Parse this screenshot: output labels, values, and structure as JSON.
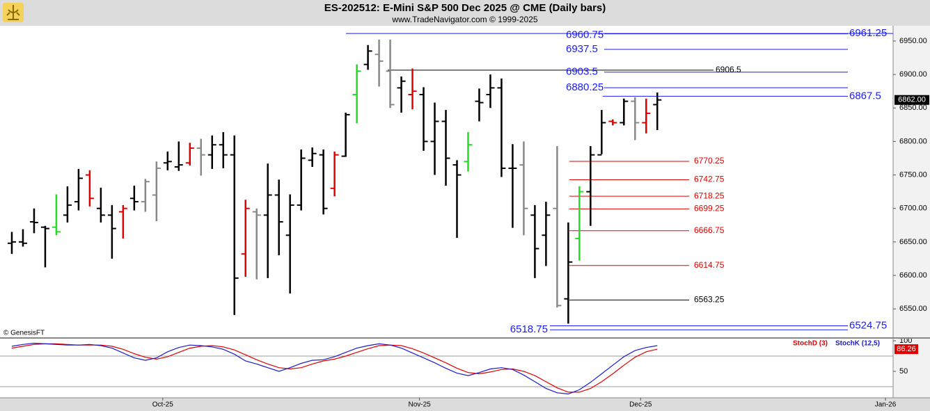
{
  "chart_data": {
    "type": "ohlc",
    "title": "ES-202512:  E-Mini S&P 500 Dec 2025 @ CME  (Daily bars)",
    "subtitle": "www.TradeNavigator.com © 1999-2025",
    "watermark": "© GenesisFT",
    "categories": [
      null,
      null,
      null,
      null,
      null,
      null,
      null,
      null,
      null,
      null,
      null,
      null,
      null,
      null,
      null,
      null,
      null,
      null,
      null,
      null,
      null,
      null,
      null,
      null,
      null,
      null,
      null,
      null,
      null,
      null,
      null,
      null,
      null,
      null,
      null,
      null,
      null,
      null,
      null,
      null,
      null,
      null,
      null,
      null,
      null,
      null,
      null,
      null,
      null,
      null,
      null,
      null,
      null,
      null,
      null,
      null,
      null,
      null,
      null
    ],
    "open": [
      6648,
      6650,
      6680,
      6672,
      6672,
      6690,
      6710,
      6750,
      6700,
      6690,
      6695,
      6715,
      6710,
      6720,
      6768,
      6762,
      6768,
      6790,
      6780,
      6795,
      6780,
      6632,
      6695,
      6690,
      6720,
      6660,
      6705,
      6772,
      6780,
      6730,
      6778,
      6870,
      6915,
      6930,
      6905,
      6880,
      6870,
      6870,
      6800,
      6830,
      6765,
      6770,
      6860,
      6870,
      6880,
      6760,
      6765,
      6690,
      6660,
      6700,
      6565,
      6655,
      6725,
      6780,
      6830,
      6828,
      6860,
      6828,
      6855
    ],
    "high": [
      6665,
      6669,
      6700,
      6674,
      6721,
      6733,
      6759,
      6757,
      6731,
      6705,
      6705,
      6734,
      6744,
      6770,
      6785,
      6800,
      6798,
      6804,
      6809,
      6814,
      6809,
      6713,
      6700,
      6767,
      6743,
      6721,
      6788,
      6791,
      6788,
      6785,
      6843,
      6915,
      6944,
      6952,
      6952,
      6897,
      6909,
      6881,
      6858,
      6847,
      6772,
      6814,
      6879,
      6900,
      6894,
      6796,
      6800,
      6705,
      6710,
      6793,
      6679,
      6733,
      6793,
      6847,
      6833,
      6864,
      6866,
      6864,
      6873
    ],
    "low": [
      6632,
      6643,
      6663,
      6612,
      6660,
      6679,
      6697,
      6703,
      6679,
      6625,
      6655,
      6697,
      6695,
      6681,
      6757,
      6756,
      6764,
      6749,
      6759,
      6760,
      6541,
      6598,
      6594,
      6596,
      6630,
      6573,
      6697,
      6762,
      6691,
      6718,
      6777,
      6827,
      6907,
      6882,
      6850,
      6843,
      6848,
      6786,
      6750,
      6734,
      6656,
      6755,
      6830,
      6850,
      6747,
      6671,
      6660,
      6596,
      6614,
      6552,
      6528,
      6622,
      6674,
      6781,
      6824,
      6824,
      6802,
      6812,
      6817
    ],
    "close": [
      6650,
      6648,
      6679,
      6670,
      6665,
      6705,
      6745,
      6715,
      6690,
      6670,
      6700,
      6710,
      6740,
      6760,
      6770,
      6765,
      6790,
      6780,
      6795,
      6780,
      6596,
      6700,
      6690,
      6720,
      6680,
      6705,
      6775,
      6782,
      6700,
      6780,
      6840,
      6905,
      6935,
      6920,
      6855,
      6890,
      6875,
      6800,
      6830,
      6775,
      6750,
      6795,
      6858,
      6880,
      6760,
      6760,
      6700,
      6640,
      6690,
      6555,
      6620,
      6725,
      6780,
      6828,
      6828,
      6860,
      6828,
      6842,
      6862
    ],
    "close_label": "6862.00",
    "colors": [
      "#000000",
      "#000000",
      "#000000",
      "#000000",
      "#22dd22",
      "#000000",
      "#000000",
      "#e00000",
      "#000000",
      "#000000",
      "#e00000",
      "#000000",
      "#888888",
      "#888888",
      "#000000",
      "#000000",
      "#e00000",
      "#888888",
      "#000000",
      "#000000",
      "#000000",
      "#e00000",
      "#888888",
      "#000000",
      "#000000",
      "#000000",
      "#000000",
      "#000000",
      "#000000",
      "#e00000",
      "#000000",
      "#22dd22",
      "#000000",
      "#888888",
      "#888888",
      "#000000",
      "#e00000",
      "#000000",
      "#000000",
      "#000000",
      "#000000",
      "#22dd22",
      "#000000",
      "#000000",
      "#000000",
      "#000000",
      "#888888",
      "#000000",
      "#000000",
      "#888888",
      "#000000",
      "#22dd22",
      "#000000",
      "#000000",
      "#e00000",
      "#000000",
      "#888888",
      "#e00000",
      "#000000"
    ],
    "ylim": [
      6507.6,
      6972.8
    ],
    "yticks": [
      {
        "value": 6550,
        "label": "6550.00"
      },
      {
        "value": 6600,
        "label": "6600.00"
      },
      {
        "value": 6650,
        "label": "6650.00"
      },
      {
        "value": 6700,
        "label": "6700.00"
      },
      {
        "value": 6750,
        "label": "6750.00"
      },
      {
        "value": 6800,
        "label": "6800.00"
      },
      {
        "value": 6850,
        "label": "6850.00"
      },
      {
        "value": 6900,
        "label": "6900.00"
      },
      {
        "value": 6950,
        "label": "6950.00"
      }
    ],
    "xlim": [
      -1.0625,
      79.1875
    ],
    "xticks": [
      {
        "value": 13.56,
        "label": "Oct-25"
      },
      {
        "value": 36.63,
        "label": "Nov-25"
      },
      {
        "value": 56.5,
        "label": "Dec-25"
      },
      {
        "value": 78.5,
        "label": "Jan-26"
      }
    ],
    "levels": [
      {
        "value": 6961.25,
        "color": "#1a1aff"
      },
      {
        "value": 6960.75,
        "color": "#1a1aff"
      },
      {
        "value": 6937.5,
        "color": "#1a1aff"
      },
      {
        "value": 6906.5,
        "color": "#000000"
      },
      {
        "value": 6903.5,
        "color": "#1a1aff"
      },
      {
        "value": 6880.25,
        "color": "#1a1aff"
      },
      {
        "value": 6867.5,
        "color": "#1a1aff"
      },
      {
        "value": 6770.25,
        "color": "#e00000"
      },
      {
        "value": 6742.75,
        "color": "#e00000"
      },
      {
        "value": 6718.25,
        "color": "#e00000"
      },
      {
        "value": 6699.25,
        "color": "#e00000"
      },
      {
        "value": 6666.75,
        "color": "#e00000"
      },
      {
        "value": 6614.75,
        "color": "#e00000"
      },
      {
        "value": 6563.25,
        "color": "#000000"
      },
      {
        "value": 6524.75,
        "color": "#1a1aff"
      },
      {
        "value": 6518.75,
        "color": "#1a1aff"
      }
    ],
    "indicator": {
      "type": "line",
      "ylim": [
        6.8,
        103.4
      ],
      "yticks": [
        50,
        100
      ],
      "levels": [
        75,
        25
      ],
      "series": [
        {
          "name": "StochD (3)",
          "color": "#e00000",
          "values": [
            88,
            91,
            94,
            95,
            95,
            94,
            93,
            93,
            93,
            91,
            86,
            79,
            73,
            70,
            74,
            81,
            88,
            91,
            92,
            90,
            85,
            77,
            69,
            62,
            56,
            54,
            56,
            62,
            67,
            70,
            75,
            81,
            87,
            92,
            93,
            92,
            87,
            80,
            72,
            64,
            55,
            48,
            46,
            49,
            53,
            54,
            50,
            43,
            33,
            23,
            16,
            16,
            22,
            33,
            46,
            60,
            73,
            82,
            86.26
          ]
        },
        {
          "name": "StochK (12,5)",
          "color": "#1a1acc",
          "values": [
            91,
            94,
            96,
            95,
            94,
            93,
            93,
            94,
            92,
            88,
            80,
            72,
            68,
            72,
            82,
            89,
            93,
            92,
            90,
            86,
            78,
            67,
            62,
            56,
            50,
            56,
            63,
            68,
            69,
            74,
            81,
            88,
            92,
            95,
            93,
            88,
            80,
            72,
            64,
            55,
            47,
            43,
            48,
            54,
            56,
            53,
            44,
            33,
            22,
            15,
            13,
            20,
            32,
            46,
            60,
            74,
            84,
            89,
            92
          ]
        }
      ]
    }
  }
}
